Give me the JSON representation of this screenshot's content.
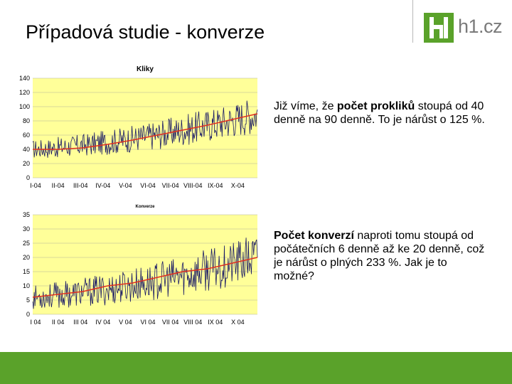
{
  "slide": {
    "title": "Případová studie - konverze"
  },
  "logo": {
    "text": "h1.cz",
    "colors": {
      "green": "#5aa22a",
      "gray": "#7a7a7a"
    }
  },
  "paragraph1": {
    "before": "Již víme, že ",
    "bold": "počet prokliků",
    "after": " stoupá od 40 denně na 90 denně. To je nárůst o 125 %."
  },
  "paragraph2": {
    "bold": "Počet konverzí",
    "after": " naproti tomu stoupá od počátečních 6 denně až ke 20 denně, což je nárůst o plných 233 %. Jak je to možné?"
  },
  "chart_data": [
    {
      "type": "line",
      "title": "Kliky",
      "categories": [
        "I-04",
        "II-04",
        "III-04",
        "IV-04",
        "V-04",
        "VI-04",
        "VII-04",
        "VIII-04",
        "IX-04",
        "X-04"
      ],
      "ylim": [
        0,
        140
      ],
      "yticks": [
        0,
        20,
        40,
        60,
        80,
        100,
        120,
        140
      ],
      "series": [
        {
          "role": "daily",
          "color": "#1a1a66",
          "start": 40,
          "end": 90,
          "noise": 22
        },
        {
          "role": "trend",
          "color": "#e03020",
          "values": [
            40,
            40,
            42,
            47,
            53,
            60,
            67,
            74,
            82,
            90
          ]
        }
      ],
      "background": "#ffff99"
    },
    {
      "type": "line",
      "title": "Konverze",
      "categories": [
        "I 04",
        "II 04",
        "III 04",
        "IV 04",
        "V 04",
        "VI 04",
        "VII 04",
        "VIII 04",
        "IX 04",
        "X 04"
      ],
      "ylim": [
        0,
        35
      ],
      "yticks": [
        0,
        5,
        10,
        15,
        20,
        25,
        30,
        35
      ],
      "series": [
        {
          "role": "daily",
          "color": "#1a1a66",
          "start": 6,
          "end": 20,
          "noise": 7
        },
        {
          "role": "trend",
          "color": "#e03020",
          "values": [
            6,
            7,
            8,
            10,
            11,
            13,
            15,
            16,
            18,
            20
          ]
        }
      ],
      "background": "#ffff99"
    }
  ]
}
